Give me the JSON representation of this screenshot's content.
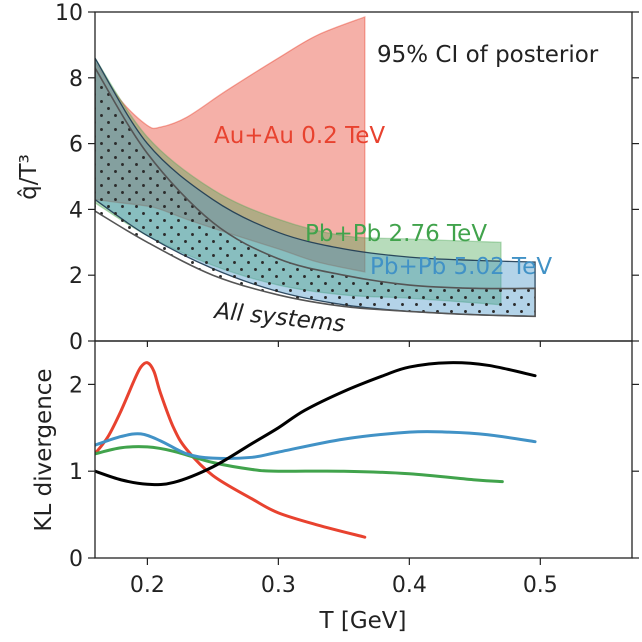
{
  "chart_data": [
    {
      "type": "area",
      "title": "",
      "annotation": "95% CI of posterior",
      "ylabel": "q̂/T³",
      "xlabel": "",
      "xlim": [
        0.16,
        0.57
      ],
      "ylim": [
        0,
        10
      ],
      "yticks": [
        0,
        2,
        4,
        6,
        8,
        10
      ],
      "yticklabels": [
        "0",
        "2",
        "4",
        "6",
        "8",
        "10"
      ],
      "colors": {
        "auau": "#e8422f",
        "pb276": "#41a34c",
        "pb502": "#4192c6",
        "all": "#222222"
      },
      "bands": [
        {
          "name": "Au+Au 0.2 TeV",
          "label_text": "Au+Au 0.2 TeV",
          "x": [
            0.16,
            0.18,
            0.2,
            0.21,
            0.23,
            0.26,
            0.3,
            0.33,
            0.366
          ],
          "upper": [
            8.5,
            7.3,
            6.55,
            6.5,
            6.8,
            7.6,
            8.6,
            9.3,
            9.85
          ],
          "lower": [
            4.3,
            4.2,
            4.1,
            4.0,
            3.7,
            3.3,
            2.8,
            2.4,
            2.1
          ]
        },
        {
          "name": "Pb+Pb 2.76 TeV",
          "label_text": "Pb+Pb 2.76 TeV",
          "x": [
            0.16,
            0.2,
            0.25,
            0.3,
            0.35,
            0.4,
            0.47
          ],
          "upper": [
            8.6,
            6.2,
            4.6,
            3.7,
            3.2,
            3.1,
            3.0
          ],
          "lower": [
            4.2,
            3.2,
            2.3,
            1.7,
            1.4,
            1.3,
            1.1
          ]
        },
        {
          "name": "Pb+Pb 5.02 TeV",
          "label_text": "Pb+Pb 5.02 TeV",
          "x": [
            0.16,
            0.2,
            0.25,
            0.3,
            0.35,
            0.4,
            0.45,
            0.496
          ],
          "upper": [
            8.6,
            6.0,
            4.3,
            3.3,
            2.8,
            2.55,
            2.45,
            2.4
          ],
          "lower": [
            4.3,
            3.2,
            2.2,
            1.5,
            1.1,
            0.9,
            0.8,
            0.75
          ]
        },
        {
          "name": "All systems",
          "label_text": "All systems",
          "x": [
            0.16,
            0.2,
            0.25,
            0.3,
            0.35,
            0.4,
            0.45,
            0.496
          ],
          "upper": [
            8.3,
            5.7,
            3.6,
            2.5,
            2.0,
            1.7,
            1.6,
            1.6
          ],
          "lower": [
            3.95,
            3.0,
            2.0,
            1.4,
            1.05,
            0.9,
            0.8,
            0.75
          ]
        }
      ]
    },
    {
      "type": "line",
      "title": "",
      "ylabel": "KL divergence",
      "xlabel": "T [GeV]",
      "xlim": [
        0.16,
        0.57
      ],
      "ylim": [
        0,
        2.5
      ],
      "xticks": [
        0.2,
        0.3,
        0.4,
        0.5
      ],
      "xticklabels": [
        "0.2",
        "0.3",
        "0.4",
        "0.5"
      ],
      "yticks": [
        0,
        1,
        2
      ],
      "yticklabels": [
        "0",
        "1",
        "2"
      ],
      "series": [
        {
          "name": "Au+Au 0.2 TeV",
          "color": "#e8422f",
          "x": [
            0.16,
            0.17,
            0.18,
            0.19,
            0.195,
            0.2,
            0.205,
            0.21,
            0.22,
            0.23,
            0.25,
            0.28,
            0.3,
            0.33,
            0.366
          ],
          "y": [
            1.2,
            1.4,
            1.7,
            2.05,
            2.2,
            2.25,
            2.15,
            1.9,
            1.5,
            1.25,
            0.95,
            0.68,
            0.52,
            0.38,
            0.24
          ]
        },
        {
          "name": "Pb+Pb 2.76 TeV",
          "color": "#41a34c",
          "x": [
            0.16,
            0.18,
            0.2,
            0.22,
            0.25,
            0.28,
            0.3,
            0.35,
            0.4,
            0.45,
            0.471
          ],
          "y": [
            1.2,
            1.27,
            1.28,
            1.23,
            1.1,
            1.02,
            1.0,
            1.0,
            0.97,
            0.9,
            0.88
          ]
        },
        {
          "name": "Pb+Pb 5.02 TeV",
          "color": "#4192c6",
          "x": [
            0.16,
            0.18,
            0.195,
            0.21,
            0.23,
            0.25,
            0.28,
            0.3,
            0.35,
            0.4,
            0.43,
            0.46,
            0.496
          ],
          "y": [
            1.3,
            1.4,
            1.43,
            1.35,
            1.2,
            1.15,
            1.16,
            1.22,
            1.37,
            1.45,
            1.45,
            1.42,
            1.34
          ]
        },
        {
          "name": "All systems",
          "color": "#000000",
          "x": [
            0.16,
            0.18,
            0.2,
            0.22,
            0.25,
            0.28,
            0.3,
            0.32,
            0.35,
            0.38,
            0.4,
            0.43,
            0.46,
            0.496
          ],
          "y": [
            1.0,
            0.9,
            0.85,
            0.87,
            1.05,
            1.32,
            1.5,
            1.7,
            1.92,
            2.1,
            2.2,
            2.25,
            2.22,
            2.1
          ]
        }
      ]
    }
  ]
}
